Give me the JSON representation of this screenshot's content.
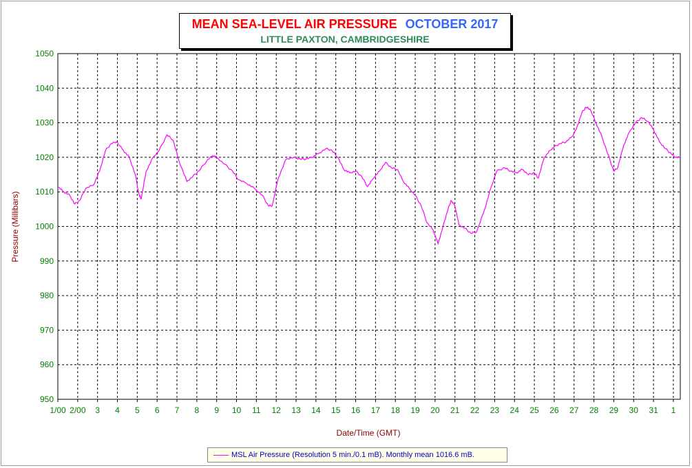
{
  "title": {
    "main": "MEAN SEA-LEVEL AIR PRESSURE",
    "month": "OCTOBER 2017",
    "subtitle": "LITTLE PAXTON, CAMBRIDGESHIRE"
  },
  "legend": {
    "text": "MSL Air Pressure (Resolution 5 min./0.1 mB). Monthly mean 1016.6 mB."
  },
  "colors": {
    "series": "#ff00ff",
    "grid": "#000000",
    "ticks": "#008000",
    "axis_label": "#8b0000",
    "title_main": "#ff0000",
    "title_month": "#3366ff",
    "subtitle": "#2e8b57"
  },
  "chart_data": {
    "type": "line",
    "title": "MEAN SEA-LEVEL AIR PRESSURE OCTOBER 2017",
    "subtitle": "LITTLE PAXTON, CAMBRIDGESHIRE",
    "xlabel": "Date/Time (GMT)",
    "ylabel": "Pressure (Millibars)",
    "ylim": [
      950,
      1050
    ],
    "yticks": [
      950,
      960,
      970,
      980,
      990,
      1000,
      1010,
      1020,
      1030,
      1040,
      1050
    ],
    "xlim": [
      1,
      32.35
    ],
    "xticks": [
      {
        "x": 1,
        "label": "1/00"
      },
      {
        "x": 2,
        "label": "2/00"
      },
      {
        "x": 3,
        "label": "3"
      },
      {
        "x": 4,
        "label": "4"
      },
      {
        "x": 5,
        "label": "5"
      },
      {
        "x": 6,
        "label": "6"
      },
      {
        "x": 7,
        "label": "7"
      },
      {
        "x": 8,
        "label": "8"
      },
      {
        "x": 9,
        "label": "9"
      },
      {
        "x": 10,
        "label": "10"
      },
      {
        "x": 11,
        "label": "11"
      },
      {
        "x": 12,
        "label": "12"
      },
      {
        "x": 13,
        "label": "13"
      },
      {
        "x": 14,
        "label": "14"
      },
      {
        "x": 15,
        "label": "15"
      },
      {
        "x": 16,
        "label": "16"
      },
      {
        "x": 17,
        "label": "17"
      },
      {
        "x": 18,
        "label": "18"
      },
      {
        "x": 19,
        "label": "19"
      },
      {
        "x": 20,
        "label": "20"
      },
      {
        "x": 21,
        "label": "21"
      },
      {
        "x": 22,
        "label": "22"
      },
      {
        "x": 23,
        "label": "23"
      },
      {
        "x": 24,
        "label": "24"
      },
      {
        "x": 25,
        "label": "25"
      },
      {
        "x": 26,
        "label": "26"
      },
      {
        "x": 27,
        "label": "27"
      },
      {
        "x": 28,
        "label": "28"
      },
      {
        "x": 29,
        "label": "29"
      },
      {
        "x": 30,
        "label": "30"
      },
      {
        "x": 31,
        "label": "31"
      },
      {
        "x": 32,
        "label": "1"
      }
    ],
    "grid": true,
    "legend_position": "bottom",
    "series": [
      {
        "name": "MSL Air Pressure (Resolution 5 min./0.1 mB). Monthly mean 1016.6 mB.",
        "x": [
          1.0,
          1.3,
          1.6,
          1.85,
          2.1,
          2.4,
          2.8,
          3.1,
          3.4,
          3.7,
          3.95,
          4.3,
          4.6,
          4.9,
          5.1,
          5.2,
          5.45,
          5.8,
          6.1,
          6.5,
          6.8,
          7.1,
          7.5,
          7.8,
          8.1,
          8.5,
          8.8,
          9.0,
          9.4,
          9.8,
          10.1,
          10.5,
          10.9,
          11.3,
          11.6,
          11.8,
          12.1,
          12.5,
          12.9,
          13.2,
          13.5,
          13.8,
          14.1,
          14.5,
          14.8,
          15.1,
          15.4,
          15.7,
          16.0,
          16.3,
          16.6,
          16.9,
          17.2,
          17.5,
          17.8,
          18.1,
          18.4,
          18.7,
          19.0,
          19.3,
          19.6,
          19.9,
          20.15,
          20.4,
          20.6,
          20.8,
          21.0,
          21.2,
          21.5,
          21.8,
          22.1,
          22.5,
          22.8,
          23.1,
          23.5,
          23.8,
          24.1,
          24.4,
          24.7,
          25.0,
          25.2,
          25.5,
          25.8,
          26.0,
          26.3,
          26.6,
          26.9,
          27.1,
          27.4,
          27.6,
          27.8,
          28.1,
          28.4,
          28.7,
          29.0,
          29.2,
          29.5,
          29.8,
          30.1,
          30.4,
          30.7,
          31.0,
          31.3,
          31.6,
          31.9,
          32.1,
          32.35
        ],
        "y": [
          1011.5,
          1010.0,
          1009.0,
          1006.5,
          1007.5,
          1011.0,
          1012.0,
          1016.0,
          1022.0,
          1024.0,
          1024.5,
          1022.0,
          1020.0,
          1015.0,
          1009.0,
          1008.0,
          1016.0,
          1020.0,
          1022.0,
          1026.5,
          1025.0,
          1019.0,
          1013.0,
          1014.5,
          1016.0,
          1019.0,
          1020.5,
          1020.0,
          1018.0,
          1016.0,
          1013.5,
          1012.5,
          1011.0,
          1009.0,
          1006.0,
          1006.0,
          1014.0,
          1019.5,
          1020.0,
          1019.5,
          1019.5,
          1020.0,
          1021.0,
          1022.5,
          1022.0,
          1020.0,
          1016.5,
          1015.5,
          1016.0,
          1014.5,
          1011.5,
          1014.0,
          1016.0,
          1018.5,
          1017.0,
          1016.5,
          1013.0,
          1011.0,
          1009.0,
          1006.0,
          1001.0,
          999.0,
          995.0,
          1000.0,
          1004.0,
          1007.5,
          1006.0,
          1000.5,
          999.5,
          998.0,
          998.5,
          1005.0,
          1011.0,
          1016.0,
          1017.0,
          1016.0,
          1015.5,
          1016.5,
          1015.0,
          1015.5,
          1014.0,
          1020.0,
          1022.0,
          1023.0,
          1024.0,
          1024.5,
          1026.0,
          1028.0,
          1033.0,
          1034.5,
          1034.0,
          1030.0,
          1026.0,
          1021.0,
          1016.0,
          1017.0,
          1023.5,
          1027.5,
          1030.0,
          1031.5,
          1030.5,
          1028.0,
          1024.5,
          1022.5,
          1021.0,
          1020.0,
          1020.0
        ]
      }
    ]
  }
}
